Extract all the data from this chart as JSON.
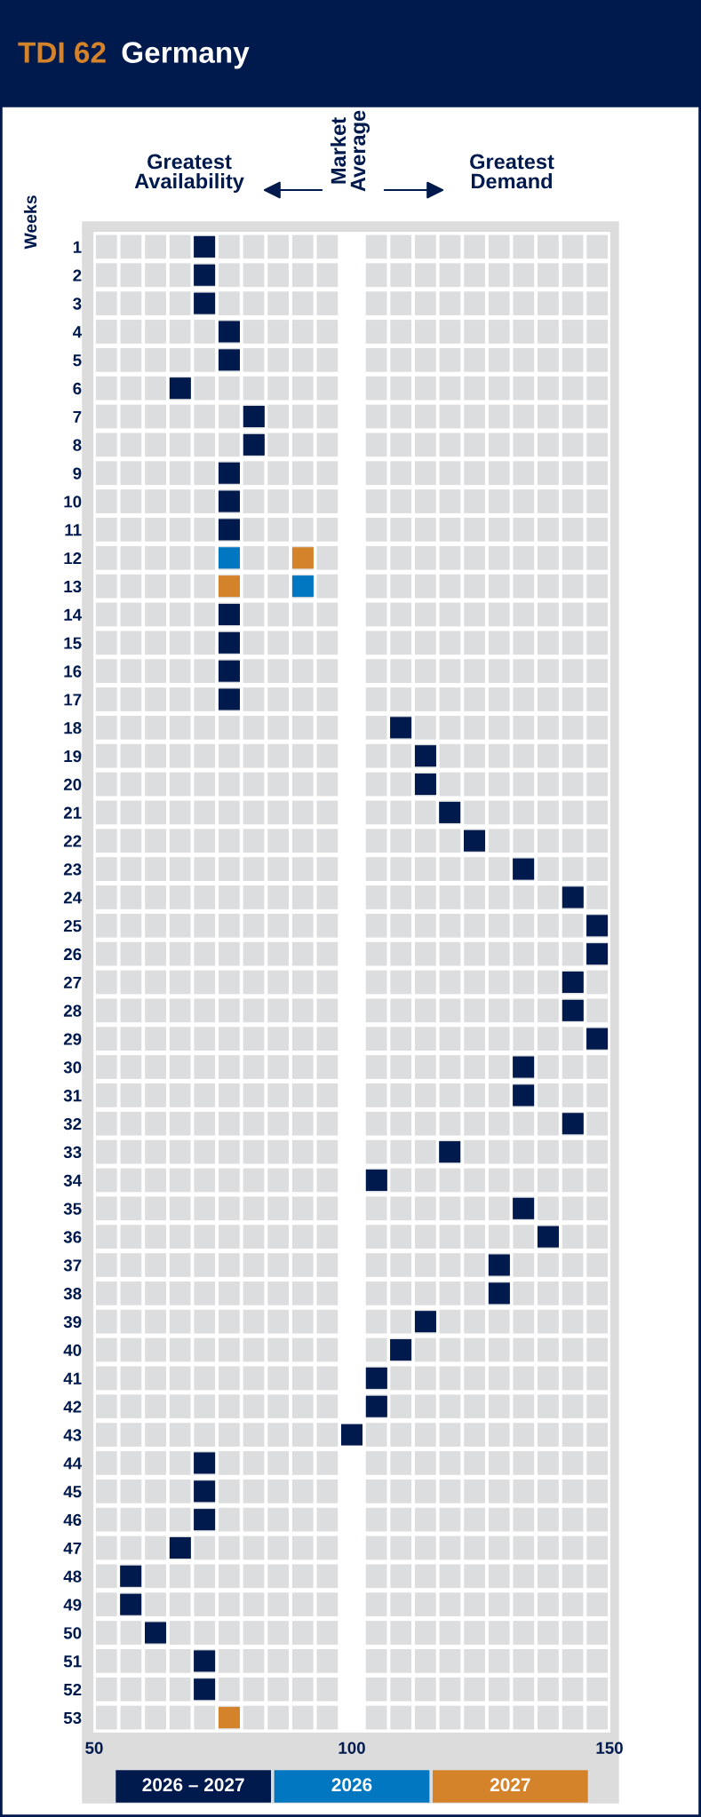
{
  "chart_data": {
    "type": "scatter",
    "title": "TDI 62",
    "subtitle": "Germany",
    "ylabel": "Weeks",
    "annotations": [
      "Greatest\nAvailability",
      "Market\nAverage",
      "Greatest\nDemand"
    ],
    "categories": [
      "1",
      "2",
      "3",
      "4",
      "5",
      "6",
      "7",
      "8",
      "9",
      "10",
      "11",
      "12",
      "13",
      "14",
      "15",
      "16",
      "17",
      "18",
      "19",
      "20",
      "21",
      "22",
      "23",
      "24",
      "25",
      "26",
      "27",
      "28",
      "29",
      "30",
      "31",
      "32",
      "33",
      "34",
      "35",
      "36",
      "37",
      "38",
      "39",
      "40",
      "41",
      "42",
      "43",
      "44",
      "45",
      "46",
      "47",
      "48",
      "49",
      "50",
      "51",
      "52",
      "53"
    ],
    "series": [
      {
        "name": "2026 – 2027",
        "color": "#001a4d",
        "values": [
          71.4,
          71.4,
          71.4,
          76.2,
          76.2,
          66.7,
          81.0,
          81.0,
          76.2,
          76.2,
          76.2,
          null,
          null,
          76.2,
          76.2,
          76.2,
          76.2,
          109.5,
          114.3,
          114.3,
          119.0,
          123.8,
          133.3,
          142.9,
          147.6,
          147.6,
          142.9,
          142.9,
          147.6,
          133.3,
          133.3,
          142.9,
          119.0,
          104.8,
          133.3,
          138.1,
          128.6,
          128.6,
          114.3,
          109.5,
          104.8,
          104.8,
          100.0,
          71.4,
          71.4,
          71.4,
          66.7,
          57.1,
          57.1,
          61.9,
          71.4,
          71.4,
          null
        ]
      },
      {
        "name": "2026",
        "color": "#0077c0",
        "values": [
          null,
          null,
          null,
          null,
          null,
          null,
          null,
          null,
          null,
          null,
          null,
          76.2,
          90.5,
          null,
          null,
          null,
          null,
          null,
          null,
          null,
          null,
          null,
          null,
          null,
          null,
          null,
          null,
          null,
          null,
          null,
          null,
          null,
          null,
          null,
          null,
          null,
          null,
          null,
          null,
          null,
          null,
          null,
          null,
          null,
          null,
          null,
          null,
          null,
          null,
          null,
          null,
          null,
          null
        ]
      },
      {
        "name": "2027",
        "color": "#d4832a",
        "values": [
          null,
          null,
          null,
          null,
          null,
          null,
          null,
          null,
          null,
          null,
          null,
          90.5,
          76.2,
          null,
          null,
          null,
          null,
          null,
          null,
          null,
          null,
          null,
          null,
          null,
          null,
          null,
          null,
          null,
          null,
          null,
          null,
          null,
          null,
          null,
          null,
          null,
          null,
          null,
          null,
          null,
          null,
          null,
          null,
          null,
          null,
          null,
          null,
          null,
          null,
          null,
          null,
          null,
          76.2
        ]
      }
    ],
    "orientation": "horizontal",
    "xlim": [
      50,
      150
    ],
    "xticks": [
      50,
      100,
      150
    ],
    "marker": "square",
    "legend": "bottom",
    "grid": false
  }
}
